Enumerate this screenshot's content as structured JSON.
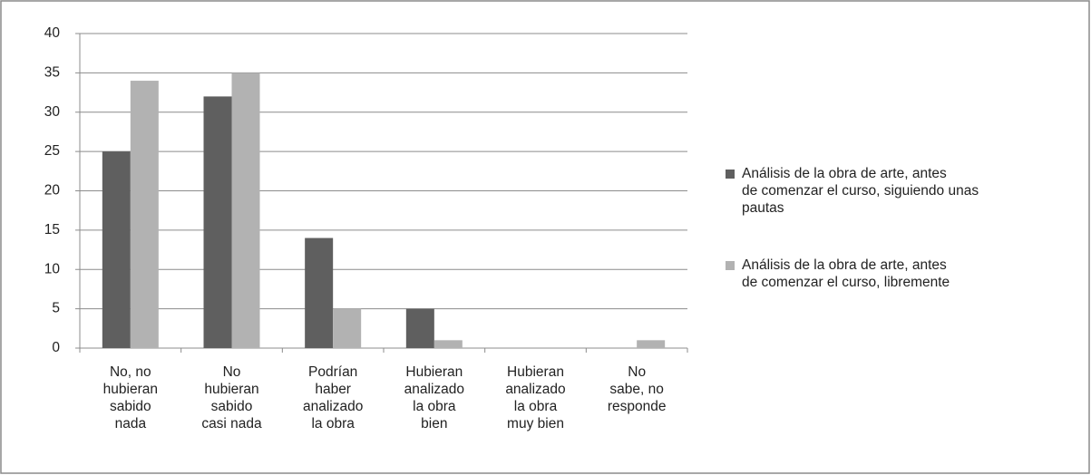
{
  "chart_data": {
    "type": "bar",
    "categories": [
      "No, no\nhubieran\nsabido\nnada",
      "No\nhubieran\nsabido\ncasi nada",
      "Podrían\nhaber\nanalizado\nla obra",
      "Hubieran\nanalizado\nla obra\nbien",
      "Hubieran\nanalizado\nla obra\nmuy bien",
      "No\nsabe, no\nresponde"
    ],
    "series": [
      {
        "name": "Análisis de la obra de arte, antes de comenzar el curso, siguiendo unas pautas",
        "color": "#5f5f5f",
        "values": [
          25,
          32,
          14,
          5,
          0,
          0
        ]
      },
      {
        "name": "Análisis de la obra de arte, antes de comenzar el curso, libremente",
        "color": "#b2b2b2",
        "values": [
          34,
          35,
          5,
          1,
          0,
          1
        ]
      }
    ],
    "ylim": [
      0,
      40
    ],
    "yticks": [
      0,
      5,
      10,
      15,
      20,
      25,
      30,
      35,
      40
    ],
    "grid": true,
    "legend": "right"
  }
}
